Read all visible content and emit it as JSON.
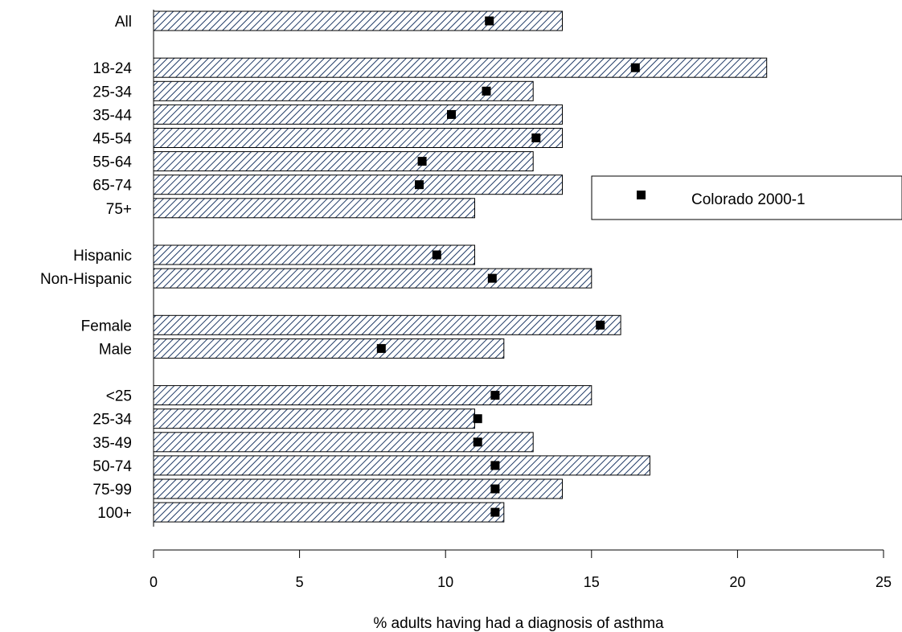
{
  "chart_data": {
    "type": "bar",
    "orientation": "horizontal",
    "categories": [
      "All",
      "18-24",
      "25-34",
      "35-44",
      "45-54",
      "55-64",
      "65-74",
      "75+",
      "Hispanic",
      "Non-Hispanic",
      "Female",
      "Male",
      "<25",
      "25-34",
      "35-49",
      "50-74",
      "75-99",
      "100+"
    ],
    "groups": [
      [
        "All"
      ],
      [
        "18-24",
        "25-34",
        "35-44",
        "45-54",
        "55-64",
        "65-74",
        "75+"
      ],
      [
        "Hispanic",
        "Non-Hispanic"
      ],
      [
        "Female",
        "Male"
      ],
      [
        "<25",
        "25-34",
        "35-49",
        "50-74",
        "75-99",
        "100+"
      ]
    ],
    "series": [
      {
        "style": "hatched-bar",
        "values": [
          14,
          21,
          13,
          14,
          14,
          13,
          14,
          11,
          11,
          15,
          16,
          12,
          15,
          11,
          13,
          17,
          14,
          12
        ]
      },
      {
        "name": "Colorado 2000-1",
        "style": "square-marker",
        "values": [
          11.5,
          16.5,
          11.4,
          10.2,
          13.1,
          9.2,
          9.1,
          null,
          9.7,
          11.6,
          15.3,
          7.8,
          11.7,
          11.1,
          11.1,
          11.7,
          11.7,
          11.7
        ]
      }
    ],
    "xlabel": "% adults having had a diagnosis of asthma",
    "ylabel": "",
    "xlim": [
      0,
      25
    ],
    "xticks": [
      0,
      5,
      10,
      15,
      20,
      25
    ],
    "grid": false,
    "legend_position": "right",
    "colors": {
      "bar_fill": "#ffffff",
      "bar_hatch": "#1f3a66",
      "bar_stroke": "#000000",
      "marker": "#000000"
    }
  }
}
